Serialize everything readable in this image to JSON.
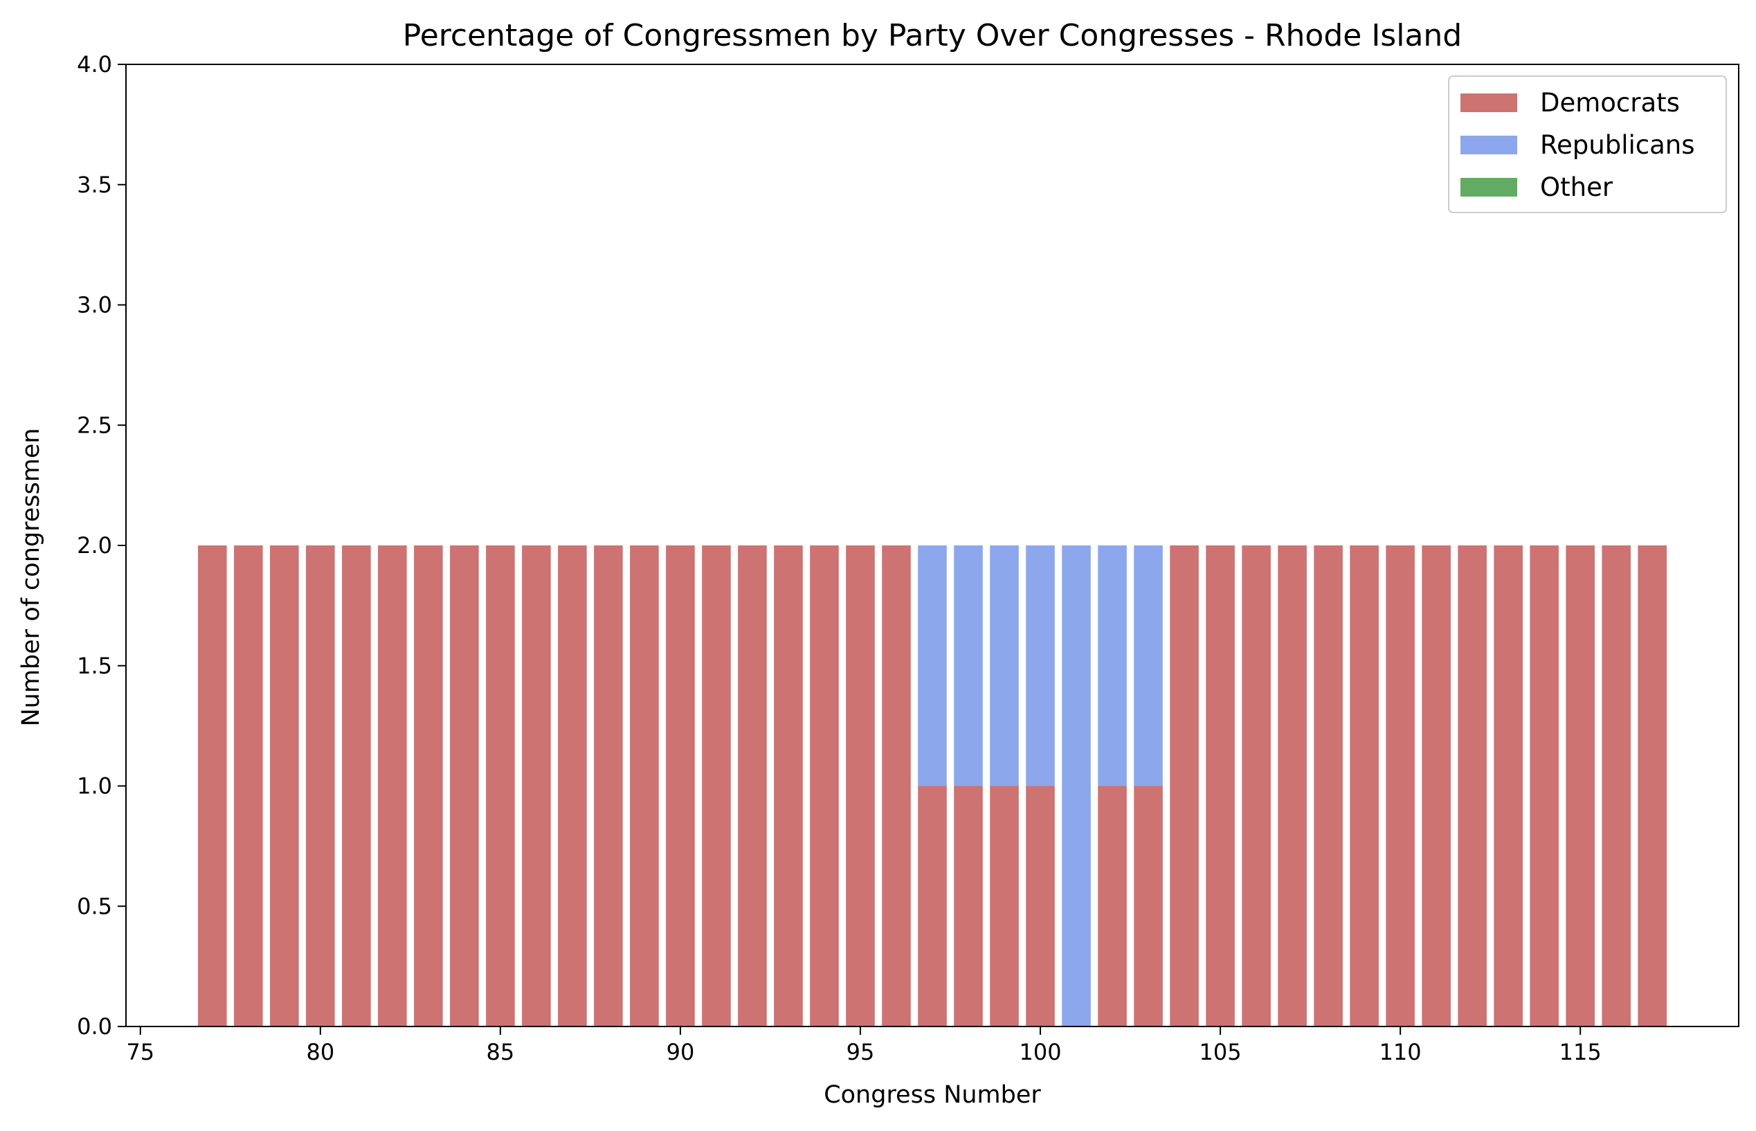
{
  "chart_data": {
    "type": "bar",
    "stacked": true,
    "title": "Percentage of Congressmen by Party Over Congresses - Rhode Island",
    "xlabel": "Congress Number",
    "ylabel": "Number of congressmen",
    "xlim": [
      74.6,
      119.4
    ],
    "ylim": [
      0,
      4
    ],
    "xticks": [
      75,
      80,
      85,
      90,
      95,
      100,
      105,
      110,
      115
    ],
    "xtick_labels": [
      "75",
      "80",
      "85",
      "90",
      "95",
      "100",
      "105",
      "110",
      "115"
    ],
    "yticks": [
      0,
      0.5,
      1,
      1.5,
      2,
      2.5,
      3,
      3.5,
      4
    ],
    "ytick_labels": [
      "0.0",
      "0.5",
      "1.0",
      "1.5",
      "2.0",
      "2.5",
      "3.0",
      "3.5",
      "4.0"
    ],
    "grid": false,
    "legend_position": "top-right",
    "x": [
      77,
      78,
      79,
      80,
      81,
      82,
      83,
      84,
      85,
      86,
      87,
      88,
      89,
      90,
      91,
      92,
      93,
      94,
      95,
      96,
      97,
      98,
      99,
      100,
      101,
      102,
      103,
      104,
      105,
      106,
      107,
      108,
      109,
      110,
      111,
      112,
      113,
      114,
      115,
      116,
      117
    ],
    "series": [
      {
        "name": "Democrats",
        "color": "#cd7372",
        "values": [
          2,
          2,
          2,
          2,
          2,
          2,
          2,
          2,
          2,
          2,
          2,
          2,
          2,
          2,
          2,
          2,
          2,
          2,
          2,
          2,
          1,
          1,
          1,
          1,
          0,
          1,
          1,
          2,
          2,
          2,
          2,
          2,
          2,
          2,
          2,
          2,
          2,
          2,
          2,
          2,
          2
        ]
      },
      {
        "name": "Republicans",
        "color": "#8da7ec",
        "values": [
          0,
          0,
          0,
          0,
          0,
          0,
          0,
          0,
          0,
          0,
          0,
          0,
          0,
          0,
          0,
          0,
          0,
          0,
          0,
          0,
          1,
          1,
          1,
          1,
          2,
          1,
          1,
          0,
          0,
          0,
          0,
          0,
          0,
          0,
          0,
          0,
          0,
          0,
          0,
          0,
          0
        ]
      },
      {
        "name": "Other",
        "color": "#62ab62",
        "values": [
          0,
          0,
          0,
          0,
          0,
          0,
          0,
          0,
          0,
          0,
          0,
          0,
          0,
          0,
          0,
          0,
          0,
          0,
          0,
          0,
          0,
          0,
          0,
          0,
          0,
          0,
          0,
          0,
          0,
          0,
          0,
          0,
          0,
          0,
          0,
          0,
          0,
          0,
          0,
          0,
          0
        ]
      }
    ]
  }
}
